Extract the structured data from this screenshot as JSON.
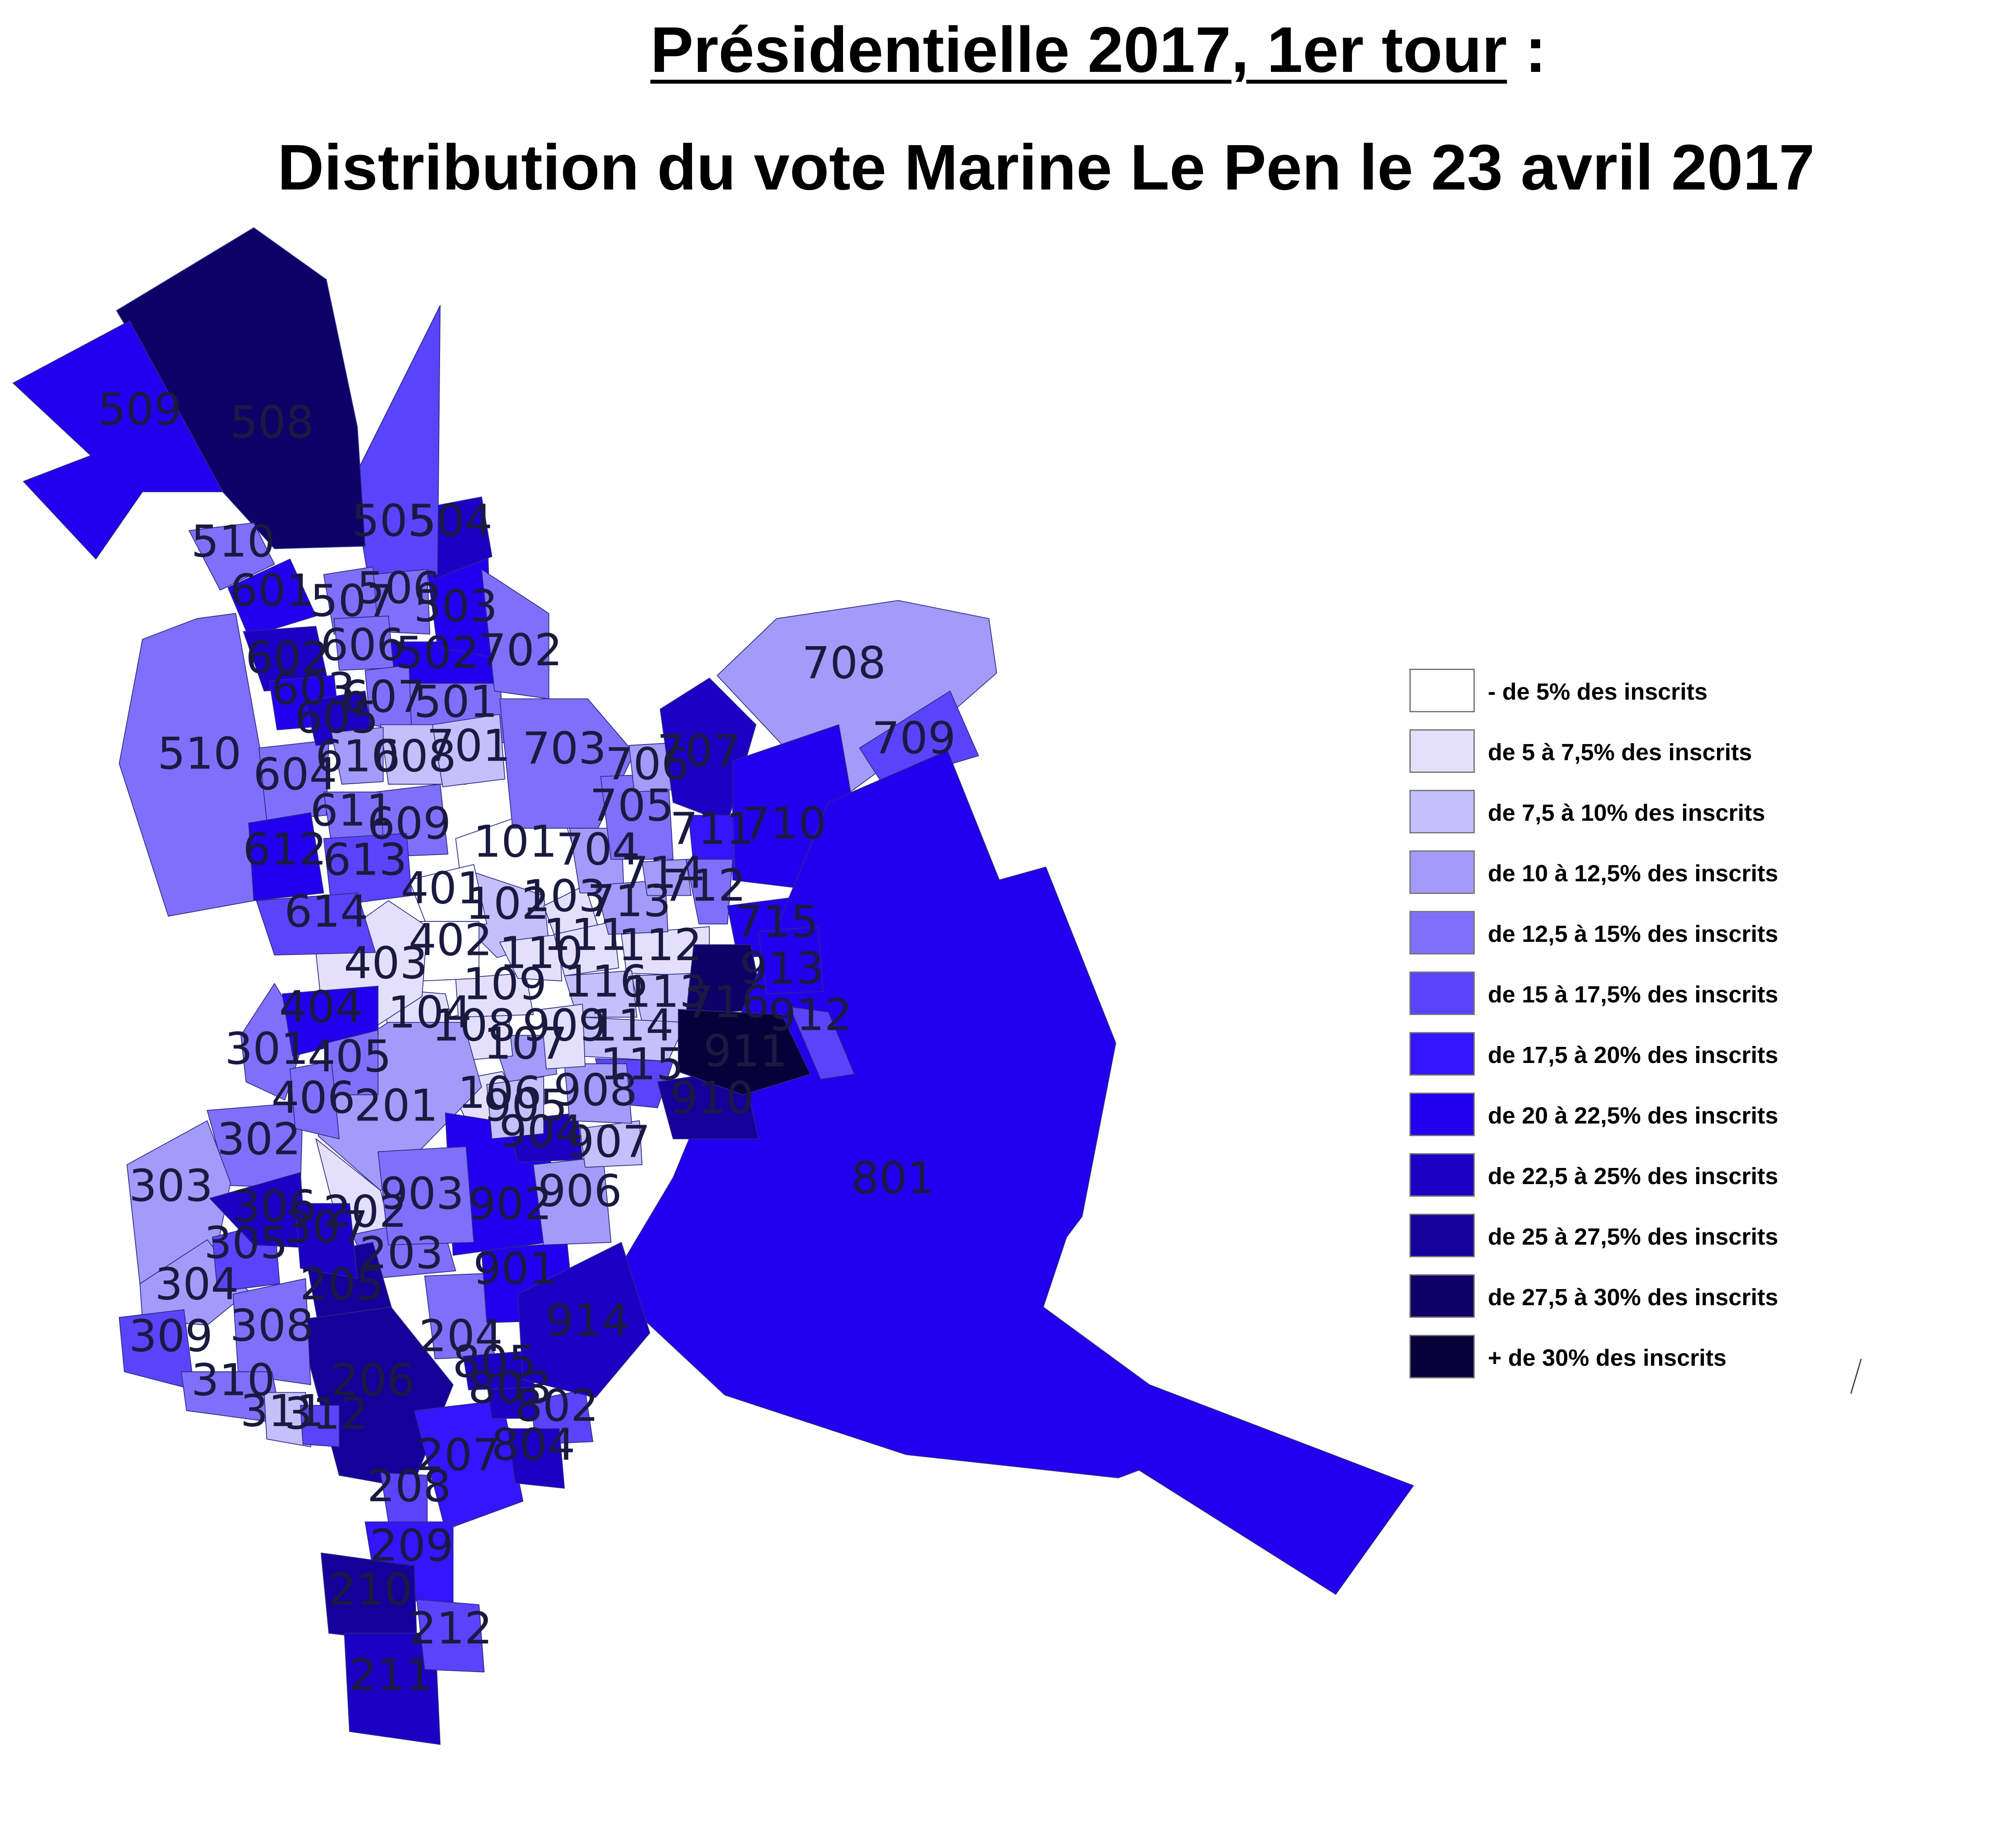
{
  "title": {
    "line1_main": "Présidentielle 2017, 1er tour",
    "line1_suffix": " :",
    "line2": "Distribution du vote Marine Le Pen le 23 avril 2017"
  },
  "legend": [
    {
      "label": "- de 5% des inscrits",
      "color": "#ffffff"
    },
    {
      "label": "de 5 à 7,5% des inscrits",
      "color": "#e4e0fc"
    },
    {
      "label": "de 7,5 à 10% des inscrits",
      "color": "#c5bffb"
    },
    {
      "label": "de 10 à 12,5% des inscrits",
      "color": "#a39bf9"
    },
    {
      "label": "de 12,5 à 15% des inscrits",
      "color": "#7f70fb"
    },
    {
      "label": "de 15 à 17,5% des inscrits",
      "color": "#5a44fb"
    },
    {
      "label": "de 17,5 à 20% des inscrits",
      "color": "#3415fc"
    },
    {
      "label": "de 20 à 22,5% des inscrits",
      "color": "#2200ee"
    },
    {
      "label": "de 22,5 à 25% des inscrits",
      "color": "#1c00c4"
    },
    {
      "label": "de 25 à 27,5% des inscrits",
      "color": "#16009a"
    },
    {
      "label": "de 27,5 à 30% des inscrits",
      "color": "#0f0068"
    },
    {
      "label": "+ de 30% des inscrits",
      "color": "#080038"
    }
  ],
  "districts": [
    {
      "id": "101",
      "cls": 0
    },
    {
      "id": "102",
      "cls": 2
    },
    {
      "id": "103",
      "cls": 1
    },
    {
      "id": "104",
      "cls": 1
    },
    {
      "id": "106",
      "cls": 1
    },
    {
      "id": "107",
      "cls": 3
    },
    {
      "id": "108",
      "cls": 1
    },
    {
      "id": "109",
      "cls": 1
    },
    {
      "id": "110",
      "cls": 1
    },
    {
      "id": "111",
      "cls": 1
    },
    {
      "id": "112",
      "cls": 1
    },
    {
      "id": "113",
      "cls": 2
    },
    {
      "id": "114",
      "cls": 2
    },
    {
      "id": "115",
      "cls": 5
    },
    {
      "id": "116",
      "cls": 2
    },
    {
      "id": "201",
      "cls": 3
    },
    {
      "id": "202",
      "cls": 1
    },
    {
      "id": "203",
      "cls": 4
    },
    {
      "id": "204",
      "cls": 4
    },
    {
      "id": "205",
      "cls": 9
    },
    {
      "id": "206",
      "cls": 9
    },
    {
      "id": "207",
      "cls": 6
    },
    {
      "id": "208",
      "cls": 5
    },
    {
      "id": "209",
      "cls": 6
    },
    {
      "id": "210",
      "cls": 9
    },
    {
      "id": "211",
      "cls": 8
    },
    {
      "id": "212",
      "cls": 5
    },
    {
      "id": "301",
      "cls": 4
    },
    {
      "id": "302",
      "cls": 4
    },
    {
      "id": "303",
      "cls": 3
    },
    {
      "id": "304",
      "cls": 3
    },
    {
      "id": "305",
      "cls": 5
    },
    {
      "id": "306",
      "cls": 8
    },
    {
      "id": "307",
      "cls": 8
    },
    {
      "id": "308",
      "cls": 4
    },
    {
      "id": "309",
      "cls": 5
    },
    {
      "id": "310",
      "cls": 4
    },
    {
      "id": "311",
      "cls": 2
    },
    {
      "id": "312",
      "cls": 5
    },
    {
      "id": "401",
      "cls": 0
    },
    {
      "id": "402",
      "cls": 0
    },
    {
      "id": "403",
      "cls": 1
    },
    {
      "id": "404",
      "cls": 7
    },
    {
      "id": "405",
      "cls": 4
    },
    {
      "id": "406",
      "cls": 4
    },
    {
      "id": "501",
      "cls": 4
    },
    {
      "id": "502",
      "cls": 7
    },
    {
      "id": "503",
      "cls": 7
    },
    {
      "id": "504",
      "cls": 8
    },
    {
      "id": "505",
      "cls": 5
    },
    {
      "id": "506",
      "cls": 4
    },
    {
      "id": "507",
      "cls": 4
    },
    {
      "id": "508",
      "cls": 10
    },
    {
      "id": "509",
      "cls": 7
    },
    {
      "id": "510",
      "cls": 4
    },
    {
      "id": "601",
      "cls": 7
    },
    {
      "id": "602",
      "cls": 8
    },
    {
      "id": "603",
      "cls": 7
    },
    {
      "id": "604",
      "cls": 4
    },
    {
      "id": "605",
      "cls": 8
    },
    {
      "id": "606",
      "cls": 4
    },
    {
      "id": "607",
      "cls": 4
    },
    {
      "id": "608",
      "cls": 2
    },
    {
      "id": "609",
      "cls": 4
    },
    {
      "id": "610",
      "cls": 3
    },
    {
      "id": "611",
      "cls": 4
    },
    {
      "id": "612",
      "cls": 7
    },
    {
      "id": "613",
      "cls": 5
    },
    {
      "id": "614",
      "cls": 5
    },
    {
      "id": "701",
      "cls": 2
    },
    {
      "id": "702",
      "cls": 4
    },
    {
      "id": "703",
      "cls": 4
    },
    {
      "id": "704",
      "cls": 3
    },
    {
      "id": "705",
      "cls": 4
    },
    {
      "id": "706",
      "cls": 3
    },
    {
      "id": "707",
      "cls": 8
    },
    {
      "id": "708",
      "cls": 3
    },
    {
      "id": "709",
      "cls": 5
    },
    {
      "id": "710",
      "cls": 7
    },
    {
      "id": "711",
      "cls": 6
    },
    {
      "id": "712",
      "cls": 4
    },
    {
      "id": "713",
      "cls": 3
    },
    {
      "id": "714",
      "cls": 3
    },
    {
      "id": "715",
      "cls": 7
    },
    {
      "id": "716",
      "cls": 10
    },
    {
      "id": "801",
      "cls": 7
    },
    {
      "id": "802",
      "cls": 5
    },
    {
      "id": "803",
      "cls": 8
    },
    {
      "id": "804",
      "cls": 8
    },
    {
      "id": "805",
      "cls": 8
    },
    {
      "id": "901",
      "cls": 7
    },
    {
      "id": "902",
      "cls": 7
    },
    {
      "id": "903",
      "cls": 4
    },
    {
      "id": "904",
      "cls": 8
    },
    {
      "id": "905",
      "cls": 2
    },
    {
      "id": "906",
      "cls": 3
    },
    {
      "id": "907",
      "cls": 2
    },
    {
      "id": "908",
      "cls": 3
    },
    {
      "id": "909",
      "cls": 1
    },
    {
      "id": "910",
      "cls": 9
    },
    {
      "id": "911",
      "cls": 11
    },
    {
      "id": "912",
      "cls": 5
    },
    {
      "id": "913",
      "cls": 7
    },
    {
      "id": "914",
      "cls": 8
    }
  ]
}
